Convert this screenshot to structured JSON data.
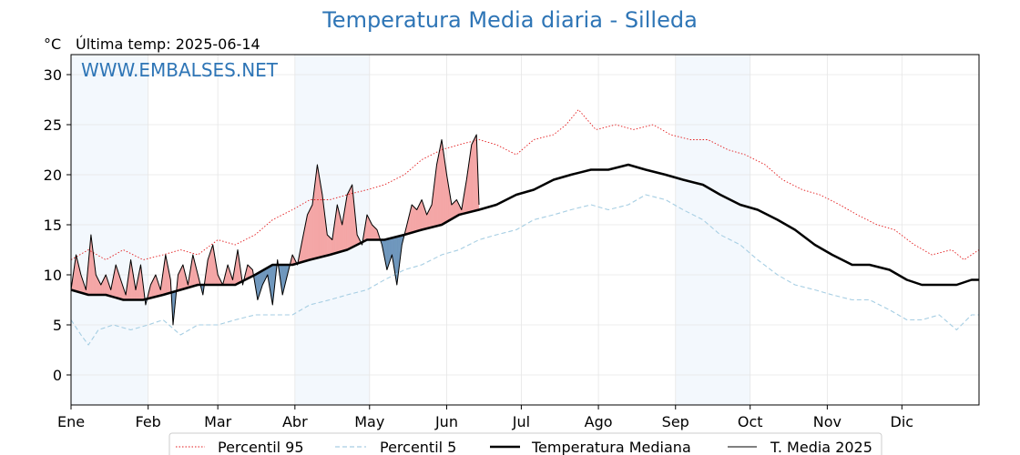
{
  "chart_data": {
    "type": "line",
    "title": "Temperatura Media diaria - Silleda",
    "unit_label": "°C",
    "last_temp_label": "Última temp: 2025-06-14",
    "watermark": "WWW.EMBALSES.NET",
    "ylim": [
      -3,
      32
    ],
    "yticks": [
      0,
      5,
      10,
      15,
      20,
      25,
      30
    ],
    "xlim": [
      1,
      366
    ],
    "month_ticks": [
      {
        "label": "Ene",
        "day": 1
      },
      {
        "label": "Feb",
        "day": 32
      },
      {
        "label": "Mar",
        "day": 60
      },
      {
        "label": "Abr",
        "day": 91
      },
      {
        "label": "May",
        "day": 121
      },
      {
        "label": "Jun",
        "day": 152
      },
      {
        "label": "Jul",
        "day": 182
      },
      {
        "label": "Ago",
        "day": 213
      },
      {
        "label": "Sep",
        "day": 244
      },
      {
        "label": "Oct",
        "day": 274
      },
      {
        "label": "Nov",
        "day": 305
      },
      {
        "label": "Dic",
        "day": 335
      }
    ],
    "grid": true,
    "legend_position": "bottom-center",
    "series": [
      {
        "name": "Percentil 95",
        "color": "#e31a1c",
        "style": "dotted",
        "points": [
          [
            1,
            11.5
          ],
          [
            8,
            12.5
          ],
          [
            15,
            11.5
          ],
          [
            22,
            12.5
          ],
          [
            30,
            11.5
          ],
          [
            38,
            12
          ],
          [
            45,
            12.5
          ],
          [
            52,
            12
          ],
          [
            60,
            13.5
          ],
          [
            67,
            13
          ],
          [
            75,
            14
          ],
          [
            82,
            15.5
          ],
          [
            90,
            16.5
          ],
          [
            97,
            17.5
          ],
          [
            105,
            17.5
          ],
          [
            112,
            18
          ],
          [
            120,
            18.5
          ],
          [
            127,
            19
          ],
          [
            135,
            20
          ],
          [
            142,
            21.5
          ],
          [
            150,
            22.5
          ],
          [
            157,
            23
          ],
          [
            165,
            23.5
          ],
          [
            172,
            23
          ],
          [
            180,
            22
          ],
          [
            187,
            23.5
          ],
          [
            195,
            24
          ],
          [
            200,
            25
          ],
          [
            205,
            26.5
          ],
          [
            212,
            24.5
          ],
          [
            220,
            25
          ],
          [
            227,
            24.5
          ],
          [
            235,
            25
          ],
          [
            242,
            24
          ],
          [
            250,
            23.5
          ],
          [
            257,
            23.5
          ],
          [
            265,
            22.5
          ],
          [
            272,
            22
          ],
          [
            280,
            21
          ],
          [
            287,
            19.5
          ],
          [
            295,
            18.5
          ],
          [
            302,
            18
          ],
          [
            310,
            17
          ],
          [
            317,
            16
          ],
          [
            325,
            15
          ],
          [
            332,
            14.5
          ],
          [
            340,
            13
          ],
          [
            347,
            12
          ],
          [
            355,
            12.5
          ],
          [
            360,
            11.5
          ],
          [
            366,
            12.5
          ]
        ]
      },
      {
        "name": "Percentil 5",
        "color": "#a6cee3",
        "style": "dashed",
        "points": [
          [
            1,
            5.5
          ],
          [
            5,
            4
          ],
          [
            8,
            3
          ],
          [
            12,
            4.5
          ],
          [
            18,
            5
          ],
          [
            25,
            4.5
          ],
          [
            32,
            5
          ],
          [
            38,
            5.5
          ],
          [
            45,
            4
          ],
          [
            52,
            5
          ],
          [
            60,
            5
          ],
          [
            67,
            5.5
          ],
          [
            75,
            6
          ],
          [
            82,
            6
          ],
          [
            90,
            6
          ],
          [
            97,
            7
          ],
          [
            105,
            7.5
          ],
          [
            112,
            8
          ],
          [
            120,
            8.5
          ],
          [
            127,
            9.5
          ],
          [
            135,
            10.5
          ],
          [
            142,
            11
          ],
          [
            150,
            12
          ],
          [
            157,
            12.5
          ],
          [
            165,
            13.5
          ],
          [
            172,
            14
          ],
          [
            180,
            14.5
          ],
          [
            187,
            15.5
          ],
          [
            195,
            16
          ],
          [
            202,
            16.5
          ],
          [
            210,
            17
          ],
          [
            217,
            16.5
          ],
          [
            225,
            17
          ],
          [
            232,
            18
          ],
          [
            240,
            17.5
          ],
          [
            247,
            16.5
          ],
          [
            255,
            15.5
          ],
          [
            262,
            14
          ],
          [
            270,
            13
          ],
          [
            277,
            11.5
          ],
          [
            285,
            10
          ],
          [
            292,
            9
          ],
          [
            300,
            8.5
          ],
          [
            307,
            8
          ],
          [
            315,
            7.5
          ],
          [
            322,
            7.5
          ],
          [
            330,
            6.5
          ],
          [
            337,
            5.5
          ],
          [
            343,
            5.5
          ],
          [
            350,
            6
          ],
          [
            357,
            4.5
          ],
          [
            363,
            6
          ],
          [
            366,
            6
          ]
        ]
      },
      {
        "name": "Temperatura Mediana",
        "color": "#000000",
        "style": "thick",
        "points": [
          [
            1,
            8.5
          ],
          [
            8,
            8
          ],
          [
            15,
            8
          ],
          [
            22,
            7.5
          ],
          [
            30,
            7.5
          ],
          [
            38,
            8
          ],
          [
            45,
            8.5
          ],
          [
            52,
            9
          ],
          [
            60,
            9
          ],
          [
            67,
            9
          ],
          [
            75,
            10
          ],
          [
            82,
            11
          ],
          [
            90,
            11
          ],
          [
            97,
            11.5
          ],
          [
            105,
            12
          ],
          [
            112,
            12.5
          ],
          [
            120,
            13.5
          ],
          [
            127,
            13.5
          ],
          [
            135,
            14
          ],
          [
            142,
            14.5
          ],
          [
            150,
            15
          ],
          [
            157,
            16
          ],
          [
            165,
            16.5
          ],
          [
            172,
            17
          ],
          [
            180,
            18
          ],
          [
            187,
            18.5
          ],
          [
            195,
            19.5
          ],
          [
            202,
            20
          ],
          [
            210,
            20.5
          ],
          [
            217,
            20.5
          ],
          [
            225,
            21
          ],
          [
            232,
            20.5
          ],
          [
            240,
            20
          ],
          [
            247,
            19.5
          ],
          [
            255,
            19
          ],
          [
            262,
            18
          ],
          [
            270,
            17
          ],
          [
            277,
            16.5
          ],
          [
            285,
            15.5
          ],
          [
            292,
            14.5
          ],
          [
            300,
            13
          ],
          [
            307,
            12
          ],
          [
            315,
            11
          ],
          [
            322,
            11
          ],
          [
            330,
            10.5
          ],
          [
            337,
            9.5
          ],
          [
            343,
            9
          ],
          [
            350,
            9
          ],
          [
            357,
            9
          ],
          [
            363,
            9.5
          ],
          [
            366,
            9.5
          ]
        ]
      },
      {
        "name": "T. Media 2025",
        "color": "#000000",
        "style": "thin",
        "points": [
          [
            1,
            8.5
          ],
          [
            3,
            12
          ],
          [
            5,
            10
          ],
          [
            7,
            8.5
          ],
          [
            9,
            14
          ],
          [
            11,
            10
          ],
          [
            13,
            9
          ],
          [
            15,
            10
          ],
          [
            17,
            8.5
          ],
          [
            19,
            11
          ],
          [
            21,
            9.5
          ],
          [
            23,
            8
          ],
          [
            25,
            11.5
          ],
          [
            27,
            8.5
          ],
          [
            29,
            11
          ],
          [
            31,
            7
          ],
          [
            33,
            9
          ],
          [
            35,
            10
          ],
          [
            37,
            8.5
          ],
          [
            39,
            12
          ],
          [
            41,
            9.5
          ],
          [
            42,
            5
          ],
          [
            44,
            10
          ],
          [
            46,
            11
          ],
          [
            48,
            9
          ],
          [
            50,
            12
          ],
          [
            52,
            10
          ],
          [
            54,
            8
          ],
          [
            56,
            11.5
          ],
          [
            58,
            13
          ],
          [
            60,
            10
          ],
          [
            62,
            9
          ],
          [
            64,
            11
          ],
          [
            66,
            9.5
          ],
          [
            68,
            12.5
          ],
          [
            70,
            9
          ],
          [
            72,
            11
          ],
          [
            74,
            10.5
          ],
          [
            76,
            7.5
          ],
          [
            78,
            9
          ],
          [
            80,
            10
          ],
          [
            82,
            7
          ],
          [
            84,
            11.5
          ],
          [
            86,
            8
          ],
          [
            88,
            10
          ],
          [
            90,
            12
          ],
          [
            92,
            11
          ],
          [
            94,
            13.5
          ],
          [
            96,
            16
          ],
          [
            98,
            17
          ],
          [
            100,
            21
          ],
          [
            102,
            18
          ],
          [
            104,
            14
          ],
          [
            106,
            13.5
          ],
          [
            108,
            17
          ],
          [
            110,
            15
          ],
          [
            112,
            18
          ],
          [
            114,
            19
          ],
          [
            116,
            14
          ],
          [
            118,
            13
          ],
          [
            120,
            16
          ],
          [
            122,
            15
          ],
          [
            124,
            14.5
          ],
          [
            126,
            13
          ],
          [
            128,
            10.5
          ],
          [
            130,
            12
          ],
          [
            132,
            9
          ],
          [
            134,
            13
          ],
          [
            136,
            15
          ],
          [
            138,
            17
          ],
          [
            140,
            16.5
          ],
          [
            142,
            17.5
          ],
          [
            144,
            16
          ],
          [
            146,
            17
          ],
          [
            148,
            21
          ],
          [
            150,
            23.5
          ],
          [
            152,
            20
          ],
          [
            154,
            17
          ],
          [
            156,
            17.5
          ],
          [
            158,
            16.5
          ],
          [
            160,
            19.5
          ],
          [
            162,
            23
          ],
          [
            164,
            24
          ],
          [
            165,
            17
          ]
        ]
      }
    ]
  },
  "legend": {
    "items": [
      {
        "label": "Percentil 95"
      },
      {
        "label": "Percentil 5"
      },
      {
        "label": "Temperatura Mediana"
      },
      {
        "label": "T. Media 2025"
      }
    ]
  },
  "colors": {
    "title": "#2e75b6",
    "above_fill": "#f4a6a6",
    "below_fill": "#6f97bd",
    "band": "#f3f8fd"
  }
}
